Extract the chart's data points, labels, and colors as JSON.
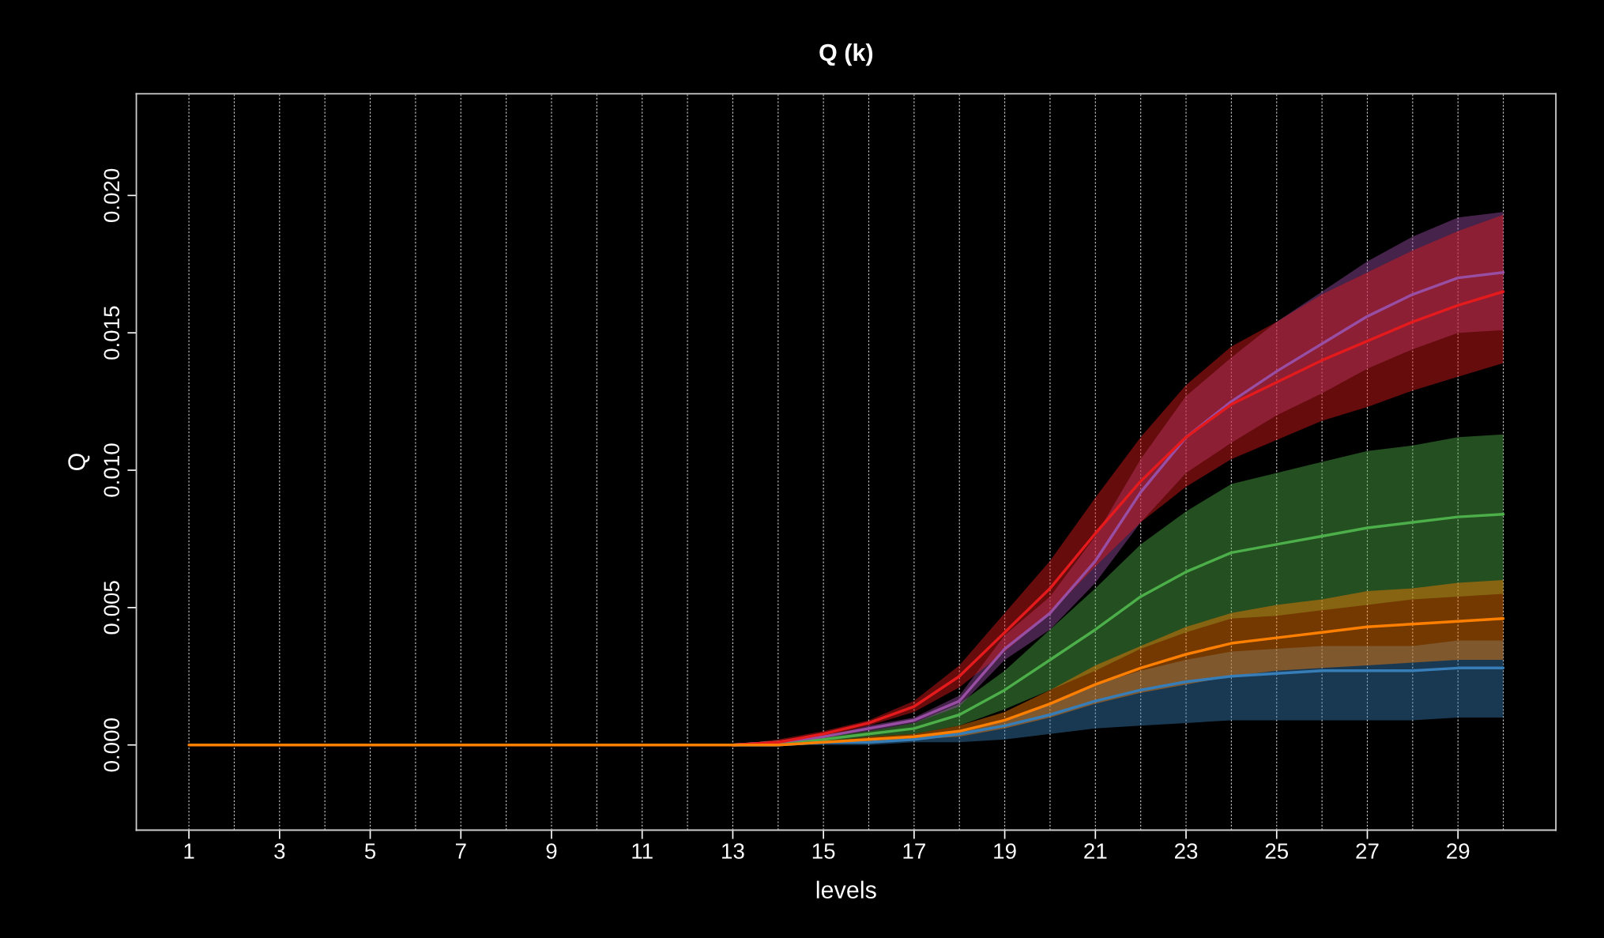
{
  "chart_data": {
    "type": "line",
    "title": "Q (k)",
    "xlabel": "levels",
    "ylabel": "Q",
    "x": [
      1,
      2,
      3,
      4,
      5,
      6,
      7,
      8,
      9,
      10,
      11,
      12,
      13,
      14,
      15,
      16,
      17,
      18,
      19,
      20,
      21,
      22,
      23,
      24,
      25,
      26,
      27,
      28,
      29,
      30
    ],
    "xlim": [
      -0.16,
      31.16
    ],
    "ylim": [
      -0.0031,
      0.0237
    ],
    "xticks": [
      1,
      3,
      5,
      7,
      9,
      11,
      13,
      15,
      17,
      19,
      21,
      23,
      25,
      27,
      29
    ],
    "yticks": [
      {
        "value": 0,
        "label": "0.000"
      },
      {
        "value": 0.005,
        "label": "0.005"
      },
      {
        "value": 0.01,
        "label": "0.010"
      },
      {
        "value": 0.015,
        "label": "0.015"
      },
      {
        "value": 0.02,
        "label": "0.020"
      }
    ],
    "grid": "x",
    "line_style": "solid",
    "marker": "none",
    "series": [
      {
        "color": "#377eb8",
        "values": [
          null,
          null,
          null,
          null,
          null,
          null,
          null,
          null,
          null,
          null,
          null,
          null,
          0,
          0,
          0.0001,
          0.0001,
          0.0002,
          0.0004,
          0.0007,
          0.0011,
          0.0016,
          0.002,
          0.0023,
          0.0025,
          0.0026,
          0.0027,
          0.0027,
          0.0027,
          0.0028,
          0.0028
        ],
        "lower": [
          null,
          null,
          null,
          null,
          null,
          null,
          null,
          null,
          null,
          null,
          null,
          null,
          0,
          0,
          0,
          0,
          0.0001,
          0.0001,
          0.0002,
          0.0004,
          0.0006,
          0.0007,
          0.0008,
          0.0009,
          0.0009,
          0.0009,
          0.0009,
          0.0009,
          0.001,
          0.001
        ],
        "upper": [
          null,
          null,
          null,
          null,
          null,
          null,
          null,
          null,
          null,
          null,
          null,
          null,
          0,
          0,
          0.0001,
          0.0001,
          0.0003,
          0.0005,
          0.0009,
          0.0015,
          0.0022,
          0.0027,
          0.0031,
          0.0034,
          0.0035,
          0.0036,
          0.0036,
          0.0036,
          0.0038,
          0.0038
        ]
      },
      {
        "color": "#4daf4a",
        "values": [
          null,
          null,
          null,
          null,
          null,
          null,
          null,
          null,
          null,
          null,
          null,
          null,
          0,
          0.0001,
          0.0002,
          0.0004,
          0.0006,
          0.0011,
          0.002,
          0.0031,
          0.0042,
          0.0054,
          0.0063,
          0.007,
          0.0073,
          0.0076,
          0.0079,
          0.0081,
          0.0083,
          0.0084
        ],
        "lower": [
          null,
          null,
          null,
          null,
          null,
          null,
          null,
          null,
          null,
          null,
          null,
          null,
          0,
          0,
          0.0001,
          0.0003,
          0.0004,
          0.0007,
          0.0013,
          0.002,
          0.0027,
          0.0035,
          0.0041,
          0.0046,
          0.0047,
          0.0049,
          0.0051,
          0.0053,
          0.0054,
          0.0055
        ],
        "upper": [
          null,
          null,
          null,
          null,
          null,
          null,
          null,
          null,
          null,
          null,
          null,
          null,
          0,
          0.0001,
          0.0003,
          0.0005,
          0.0008,
          0.0015,
          0.0027,
          0.0042,
          0.0057,
          0.0073,
          0.0085,
          0.0095,
          0.0099,
          0.0103,
          0.0107,
          0.0109,
          0.0112,
          0.0113
        ]
      },
      {
        "color": "#984ea3",
        "values": [
          null,
          null,
          null,
          null,
          null,
          null,
          null,
          null,
          null,
          null,
          null,
          null,
          0,
          0.0001,
          0.0003,
          0.0006,
          0.0009,
          0.0016,
          0.0035,
          0.0048,
          0.0067,
          0.0092,
          0.0112,
          0.0125,
          0.0136,
          0.0146,
          0.0156,
          0.0164,
          0.017,
          0.0172
        ],
        "lower": [
          null,
          null,
          null,
          null,
          null,
          null,
          null,
          null,
          null,
          null,
          null,
          null,
          0,
          0.0001,
          0.0003,
          0.0005,
          0.0008,
          0.0014,
          0.0031,
          0.0042,
          0.0059,
          0.0081,
          0.0099,
          0.011,
          0.012,
          0.0128,
          0.0137,
          0.0144,
          0.015,
          0.0151
        ],
        "upper": [
          null,
          null,
          null,
          null,
          null,
          null,
          null,
          null,
          null,
          null,
          null,
          null,
          0,
          0.0001,
          0.0003,
          0.0007,
          0.001,
          0.0018,
          0.004,
          0.0054,
          0.0076,
          0.0104,
          0.0127,
          0.0141,
          0.0154,
          0.0165,
          0.0176,
          0.0185,
          0.0192,
          0.0194
        ]
      },
      {
        "color": "#e41a1c",
        "values": [
          null,
          null,
          null,
          null,
          null,
          null,
          null,
          null,
          null,
          null,
          null,
          null,
          0,
          0.0001,
          0.0004,
          0.0008,
          0.0014,
          0.0025,
          0.0041,
          0.0057,
          0.0077,
          0.0096,
          0.0112,
          0.0124,
          0.0132,
          0.014,
          0.0147,
          0.0154,
          0.016,
          0.0165
        ],
        "lower": [
          null,
          null,
          null,
          null,
          null,
          null,
          null,
          null,
          null,
          null,
          null,
          null,
          0,
          0.0001,
          0.0003,
          0.0007,
          0.0012,
          0.0021,
          0.0034,
          0.0048,
          0.0065,
          0.0081,
          0.0094,
          0.0104,
          0.0111,
          0.0118,
          0.0123,
          0.0129,
          0.0134,
          0.0139
        ],
        "upper": [
          null,
          null,
          null,
          null,
          null,
          null,
          null,
          null,
          null,
          null,
          null,
          null,
          0,
          0.0002,
          0.0005,
          0.0009,
          0.0016,
          0.0029,
          0.0048,
          0.0067,
          0.009,
          0.0112,
          0.0131,
          0.0145,
          0.0154,
          0.0164,
          0.0172,
          0.018,
          0.0187,
          0.0193
        ]
      },
      {
        "color": "#ff7f00",
        "values": [
          0,
          0,
          0,
          0,
          0,
          0,
          0,
          0,
          0,
          0,
          0,
          0,
          0,
          0,
          0.0001,
          0.0002,
          0.0003,
          0.0005,
          0.0009,
          0.0015,
          0.0022,
          0.0028,
          0.0033,
          0.0037,
          0.0039,
          0.0041,
          0.0043,
          0.0044,
          0.0045,
          0.0046
        ],
        "lower": [
          0,
          0,
          0,
          0,
          0,
          0,
          0,
          0,
          0,
          0,
          0,
          0,
          0,
          0,
          0.0001,
          0.0001,
          0.0002,
          0.0003,
          0.0006,
          0.001,
          0.0015,
          0.0019,
          0.0022,
          0.0025,
          0.0027,
          0.0028,
          0.0029,
          0.003,
          0.0031,
          0.0031
        ],
        "upper": [
          0,
          0,
          0,
          0,
          0,
          0,
          0,
          0,
          0,
          0,
          0,
          0,
          0,
          0,
          0.0001,
          0.0003,
          0.0004,
          0.0007,
          0.0012,
          0.002,
          0.0029,
          0.0036,
          0.0043,
          0.0048,
          0.0051,
          0.0053,
          0.0056,
          0.0057,
          0.0059,
          0.006
        ]
      }
    ]
  }
}
